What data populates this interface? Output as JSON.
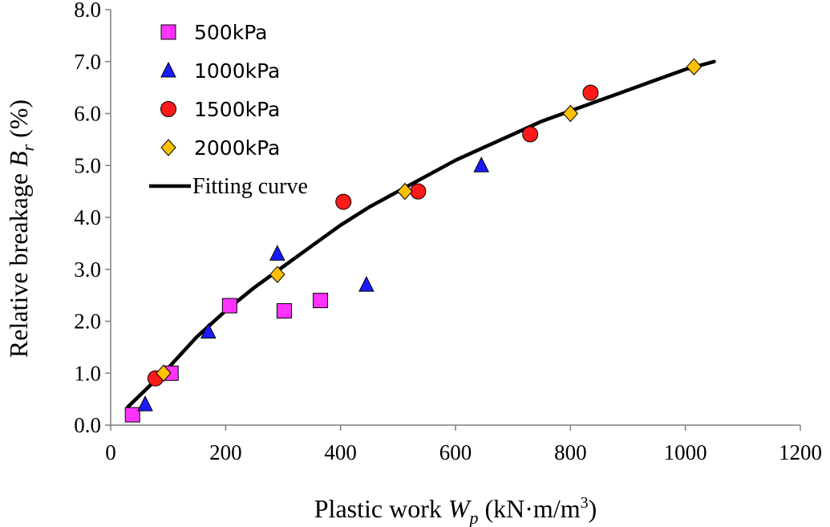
{
  "chart_data": {
    "type": "scatter",
    "xlabel": {
      "main": "Plastic work ",
      "var": "W",
      "sub": "p",
      "unit": " (kN·m/m",
      "sup": "3",
      "close": ")"
    },
    "ylabel": {
      "main": "Relative breakage  ",
      "var": "B",
      "sub": "r",
      "unit": " (%)"
    },
    "xlim": [
      0,
      1200
    ],
    "ylim": [
      0,
      8
    ],
    "xticks": [
      0,
      200,
      400,
      600,
      800,
      1000,
      1200
    ],
    "yticks": [
      "0.0",
      "1.0",
      "2.0",
      "3.0",
      "4.0",
      "5.0",
      "6.0",
      "7.0",
      "8.0"
    ],
    "grid": false,
    "legend_position": "top-left",
    "series": [
      {
        "name": "500kPa",
        "marker": "square",
        "color": "#ff33ff",
        "points": [
          [
            38,
            0.2
          ],
          [
            105,
            1.0
          ],
          [
            207,
            2.3
          ],
          [
            302,
            2.2
          ],
          [
            365,
            2.4
          ]
        ]
      },
      {
        "name": "1000kPa",
        "marker": "triangle",
        "color": "#1a1aff",
        "points": [
          [
            60,
            0.4
          ],
          [
            170,
            1.8
          ],
          [
            290,
            3.3
          ],
          [
            445,
            2.7
          ],
          [
            645,
            5.0
          ]
        ]
      },
      {
        "name": "1500kPa",
        "marker": "circle",
        "color": "#ff1a1a",
        "points": [
          [
            78,
            0.9
          ],
          [
            405,
            4.3
          ],
          [
            535,
            4.5
          ],
          [
            730,
            5.6
          ],
          [
            835,
            6.4
          ]
        ]
      },
      {
        "name": "2000kPa",
        "marker": "diamond",
        "color": "#ffc000",
        "points": [
          [
            92,
            1.0
          ],
          [
            290,
            2.9
          ],
          [
            512,
            4.5
          ],
          [
            800,
            6.0
          ],
          [
            1015,
            6.9
          ]
        ]
      }
    ],
    "fit": {
      "name": "Fitting curve",
      "color": "#000000",
      "points": [
        [
          30,
          0.35
        ],
        [
          100,
          1.1
        ],
        [
          150,
          1.7
        ],
        [
          200,
          2.2
        ],
        [
          250,
          2.65
        ],
        [
          300,
          3.05
        ],
        [
          350,
          3.45
        ],
        [
          400,
          3.85
        ],
        [
          450,
          4.2
        ],
        [
          500,
          4.5
        ],
        [
          550,
          4.8
        ],
        [
          600,
          5.1
        ],
        [
          650,
          5.35
        ],
        [
          700,
          5.6
        ],
        [
          750,
          5.85
        ],
        [
          800,
          6.05
        ],
        [
          850,
          6.25
        ],
        [
          900,
          6.45
        ],
        [
          950,
          6.65
        ],
        [
          1000,
          6.85
        ],
        [
          1050,
          7.0
        ]
      ]
    }
  }
}
